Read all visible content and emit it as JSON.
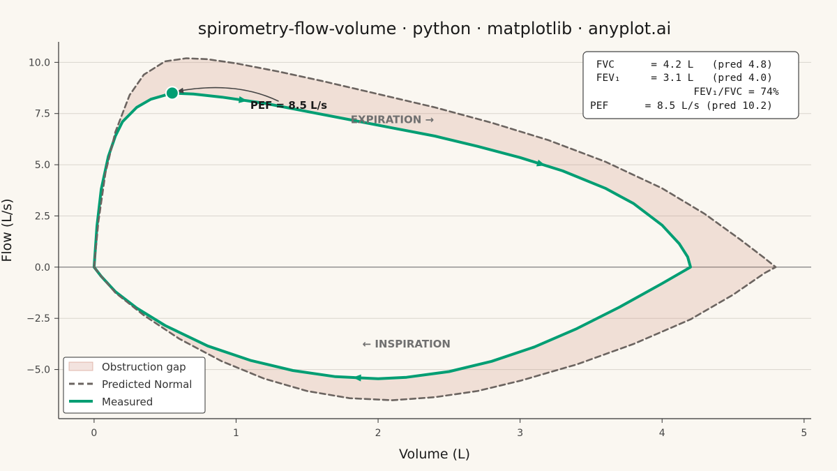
{
  "chart_data": {
    "type": "line",
    "title": "spirometry-flow-volume · python · matplotlib · anyplot.ai",
    "xlabel": "Volume (L)",
    "ylabel": "Flow (L/s)",
    "xlim": [
      -0.25,
      5.05
    ],
    "ylim": [
      -7.4,
      11.0
    ],
    "xticks": [
      0,
      1,
      2,
      3,
      4,
      5
    ],
    "xtick_labels": [
      "0",
      "1",
      "2",
      "3",
      "4",
      "5"
    ],
    "yticks": [
      -5.0,
      -2.5,
      0.0,
      2.5,
      5.0,
      7.5,
      10.0
    ],
    "ytick_labels": [
      "−5.0",
      "−2.5",
      "0.0",
      "2.5",
      "5.0",
      "7.5",
      "10.0"
    ],
    "grid": "horizontal",
    "legend_position": "lower-left",
    "series": [
      {
        "name": "Measured",
        "color": "#009E73",
        "style": "solid",
        "x": [
          0,
          0.02,
          0.05,
          0.1,
          0.15,
          0.2,
          0.3,
          0.4,
          0.55,
          0.7,
          0.9,
          1.2,
          1.5,
          1.8,
          2.1,
          2.4,
          2.7,
          3.0,
          3.3,
          3.6,
          3.8,
          4.0,
          4.12,
          4.18,
          4.2,
          4.0,
          3.7,
          3.4,
          3.1,
          2.8,
          2.5,
          2.2,
          2.0,
          1.7,
          1.4,
          1.1,
          0.8,
          0.5,
          0.3,
          0.15,
          0.05,
          0
        ],
        "y": [
          0,
          2.0,
          3.8,
          5.4,
          6.4,
          7.1,
          7.8,
          8.2,
          8.5,
          8.45,
          8.3,
          8.0,
          7.6,
          7.2,
          6.8,
          6.4,
          5.9,
          5.35,
          4.7,
          3.85,
          3.1,
          2.05,
          1.15,
          0.5,
          0,
          -0.8,
          -1.95,
          -3.0,
          -3.9,
          -4.6,
          -5.1,
          -5.38,
          -5.45,
          -5.35,
          -5.05,
          -4.55,
          -3.85,
          -2.85,
          -2.0,
          -1.2,
          -0.45,
          0
        ]
      },
      {
        "name": "Predicted Normal",
        "color": "#6B6460",
        "style": "dashed",
        "x": [
          0,
          0.03,
          0.08,
          0.15,
          0.25,
          0.35,
          0.5,
          0.65,
          0.8,
          1.0,
          1.3,
          1.6,
          2.0,
          2.4,
          2.8,
          3.2,
          3.6,
          4.0,
          4.3,
          4.55,
          4.72,
          4.8,
          4.72,
          4.5,
          4.2,
          3.8,
          3.4,
          3.0,
          2.7,
          2.4,
          2.1,
          1.8,
          1.5,
          1.2,
          0.9,
          0.6,
          0.35,
          0.15,
          0.05,
          0
        ],
        "y": [
          0,
          2.2,
          4.6,
          6.6,
          8.4,
          9.4,
          10.05,
          10.2,
          10.15,
          9.95,
          9.55,
          9.1,
          8.45,
          7.8,
          7.05,
          6.2,
          5.15,
          3.85,
          2.6,
          1.35,
          0.45,
          0,
          -0.3,
          -1.35,
          -2.55,
          -3.75,
          -4.75,
          -5.55,
          -6.05,
          -6.35,
          -6.5,
          -6.4,
          -6.05,
          -5.45,
          -4.6,
          -3.5,
          -2.35,
          -1.25,
          -0.45,
          0
        ]
      }
    ],
    "fill": {
      "name": "Obstruction gap",
      "color": "#C9806E",
      "opacity": 0.2
    },
    "pef_marker": {
      "x": 0.55,
      "y": 8.5,
      "label": "PEF = 8.5 L/s",
      "label_x": 1.1,
      "label_y": 7.9
    },
    "annotations": [
      {
        "text": "EXPIRATION →",
        "x": 2.1,
        "y": 7.2
      },
      {
        "text": "← INSPIRATION",
        "x": 2.2,
        "y": -3.75
      }
    ],
    "stats_box": [
      " FVC      = 4.2 L   (pred 4.8)",
      " FEV₁     = 3.1 L   (pred 4.0)",
      "                 FEV₁/FVC = 74%",
      "PEF      = 8.5 L/s (pred 10.2)"
    ],
    "legend": [
      "Obstruction gap",
      "Predicted Normal",
      "Measured"
    ]
  }
}
